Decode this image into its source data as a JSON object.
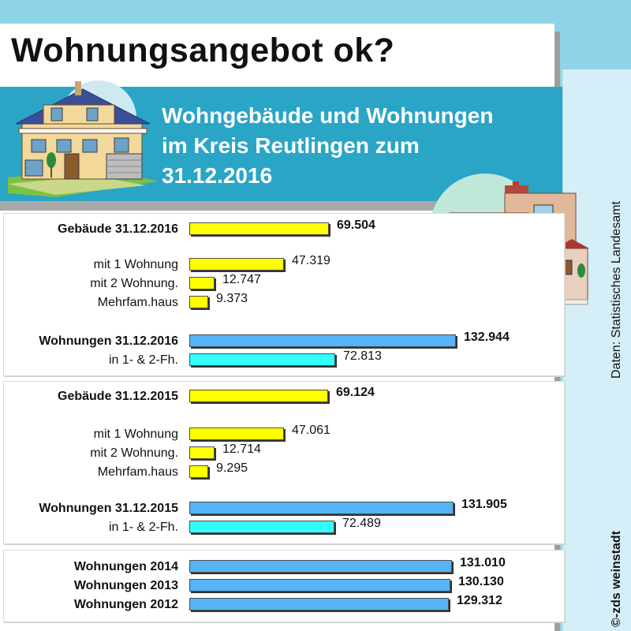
{
  "title": "Wohnungsangebot ok?",
  "subtitle_lines": [
    "Wohngebäude und Wohnungen",
    "im Kreis Reutlingen zum",
    "31.12.2016"
  ],
  "source": "Daten: Statistisches Landesamt",
  "copyright": "©-zds weinstadt",
  "icons": [
    "house-illustration-icon",
    "apartment-building-icon"
  ],
  "colors": {
    "gebaeude": "#ffff00",
    "wohnungen": "#55b4f5",
    "fh": "#33ffff",
    "banner": "#2aa5c6"
  },
  "chart_data": {
    "type": "bar",
    "orientation": "horizontal",
    "categories": [
      "Gebäude 31.12.2016",
      "mit 1 Wohnung",
      "mit 2 Wohnung.",
      "Mehrfam.haus",
      "Wohnungen 31.12.2016",
      "in 1- & 2-Fh.",
      "Gebäude 31.12.2015",
      "mit 1 Wohnung",
      "mit 2 Wohnung.",
      "Mehrfam.haus",
      "Wohnungen 31.12.2015",
      "in 1- & 2-Fh.",
      "Wohnungen 2014",
      "Wohnungen 2013",
      "Wohnungen 2012"
    ],
    "values": [
      69504,
      47319,
      12747,
      9373,
      132944,
      72813,
      69124,
      47061,
      12714,
      9295,
      131905,
      72489,
      131010,
      130130,
      129312
    ],
    "value_labels": [
      "69.504",
      "47.319",
      "12.747",
      "9.373",
      "132.944",
      "72.813",
      "69.124",
      "47.061",
      "12.714",
      "9.295",
      "131.905",
      "72.489",
      "131.010",
      "130.130",
      "129.312"
    ],
    "bold": [
      true,
      false,
      false,
      false,
      true,
      false,
      true,
      false,
      false,
      false,
      true,
      false,
      true,
      true,
      true
    ],
    "color_keys": [
      "gebaeude",
      "gebaeude",
      "gebaeude",
      "gebaeude",
      "wohnungen",
      "fh",
      "gebaeude",
      "gebaeude",
      "gebaeude",
      "gebaeude",
      "wohnungen",
      "fh",
      "wohnungen",
      "wohnungen",
      "wohnungen"
    ],
    "xlim": [
      0,
      150000
    ],
    "grid": false,
    "legend": "none"
  }
}
